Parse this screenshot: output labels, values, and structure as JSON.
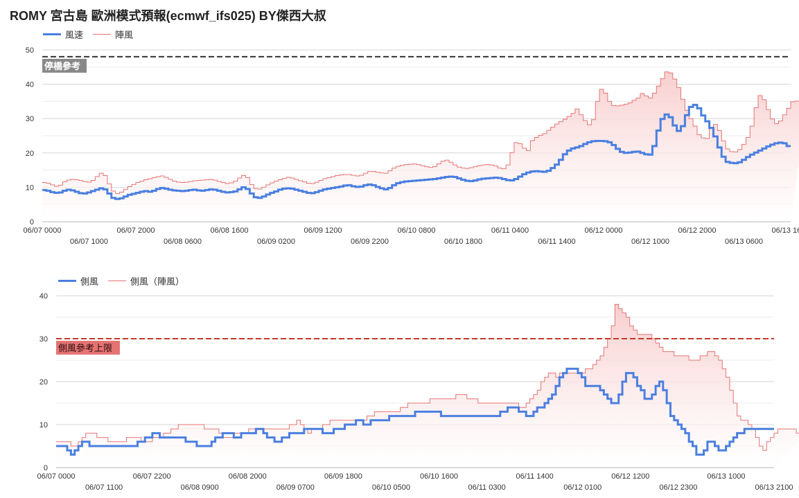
{
  "title": "ROMY 宮古島 歐洲模式預報(ecmwf_ifs025)  BY傑西大叔",
  "colors": {
    "wind": "#4a7fe0",
    "gust": "#e57373",
    "gust_fill": "#f8c9c9",
    "ref_line": "#333333",
    "limit_line": "#c0392b",
    "limit_label_bg": "#e57373",
    "ref_label_bg": "#888888"
  },
  "chart_data": [
    {
      "type": "line",
      "ylim": [
        0,
        50
      ],
      "yticks": [
        0,
        10,
        20,
        30,
        40,
        50
      ],
      "grid": true,
      "legend_placement": "top-left",
      "x_labels_upper": [
        "06/07 0000",
        "06/07 2000",
        "06/08 1600",
        "06/09 1200",
        "06/10 0800",
        "06/11 0400",
        "06/12 0000",
        "06/12 2000",
        "06/13 1600"
      ],
      "x_labels_lower": [
        "06/07 1000",
        "06/08 0600",
        "06/09 0200",
        "06/09 2200",
        "06/10 1800",
        "06/11 1400",
        "06/12 1000",
        "06/13 0600"
      ],
      "reference_line": {
        "value": 48,
        "label": "停橋參考"
      },
      "series": [
        {
          "name": "風速",
          "values": [
            9.2,
            9.0,
            8.6,
            8.4,
            8.5,
            9.0,
            9.3,
            9.1,
            8.7,
            8.3,
            8.2,
            8.5,
            8.9,
            9.3,
            9.7,
            9.4,
            8.2,
            6.9,
            6.6,
            6.8,
            7.3,
            7.8,
            8.1,
            8.4,
            8.7,
            8.9,
            8.7,
            9.0,
            9.5,
            9.8,
            9.6,
            9.3,
            9.1,
            9.0,
            8.9,
            9.0,
            9.2,
            9.3,
            9.1,
            9.0,
            9.2,
            9.4,
            9.3,
            9.0,
            8.7,
            8.5,
            8.6,
            8.8,
            9.4,
            10.0,
            9.5,
            8.2,
            7.1,
            6.9,
            7.3,
            7.9,
            8.4,
            8.8,
            9.3,
            9.6,
            9.7,
            9.6,
            9.3,
            9.0,
            8.7,
            8.4,
            8.3,
            8.6,
            9.0,
            9.4,
            9.6,
            9.8,
            10.0,
            10.2,
            10.5,
            10.6,
            10.3,
            10.1,
            10.2,
            10.6,
            10.8,
            10.6,
            10.1,
            9.7,
            9.4,
            9.8,
            10.6,
            11.2,
            11.5,
            11.7,
            11.8,
            11.9,
            12.0,
            12.1,
            12.2,
            12.3,
            12.4,
            12.6,
            12.8,
            13.0,
            13.1,
            13.0,
            12.6,
            12.2,
            11.9,
            11.8,
            12.0,
            12.3,
            12.5,
            12.6,
            12.7,
            12.8,
            12.7,
            12.4,
            12.1,
            12.0,
            12.4,
            13.1,
            13.8,
            14.3,
            14.6,
            14.7,
            14.6,
            14.5,
            14.8,
            15.6,
            16.6,
            18.0,
            19.6,
            20.7,
            21.3,
            21.6,
            22.0,
            22.6,
            23.1,
            23.4,
            23.5,
            23.5,
            23.4,
            23.1,
            22.3,
            21.2,
            20.3,
            20.0,
            20.1,
            20.3,
            20.4,
            20.0,
            19.6,
            19.5,
            22.0,
            26.5,
            29.9,
            31.2,
            30.4,
            28.0,
            26.4,
            27.8,
            31.0,
            33.4,
            34.0,
            33.0,
            30.9,
            29.2,
            27.3,
            24.8,
            21.6,
            18.9,
            17.4,
            17.1,
            17.0,
            17.3,
            18.0,
            18.8,
            19.5,
            20.1,
            20.7,
            21.3,
            21.9,
            22.4,
            22.8,
            23.0,
            22.8,
            22.0
          ]
        },
        {
          "name": "陣風",
          "values": [
            11.4,
            11.2,
            10.7,
            10.3,
            10.6,
            11.6,
            12.1,
            12.3,
            12.2,
            12.0,
            11.7,
            11.5,
            12.0,
            13.1,
            14.1,
            13.4,
            11.0,
            8.9,
            8.2,
            8.6,
            9.4,
            10.2,
            10.8,
            11.4,
            11.8,
            12.2,
            12.5,
            12.8,
            13.1,
            13.3,
            12.9,
            12.3,
            11.8,
            11.5,
            11.4,
            11.5,
            11.7,
            11.9,
            12.0,
            12.1,
            12.2,
            12.3,
            12.1,
            11.7,
            11.4,
            11.1,
            11.3,
            11.8,
            12.7,
            13.4,
            12.8,
            10.8,
            9.6,
            9.5,
            10.0,
            10.7,
            11.3,
            11.8,
            12.2,
            12.6,
            12.9,
            12.7,
            12.3,
            11.9,
            11.6,
            11.2,
            11.1,
            11.5,
            12.0,
            12.5,
            12.8,
            13.1,
            13.4,
            13.6,
            13.7,
            13.7,
            13.5,
            13.3,
            13.5,
            14.1,
            14.6,
            14.6,
            14.4,
            14.2,
            14.1,
            14.8,
            15.6,
            16.1,
            16.4,
            16.6,
            16.7,
            16.8,
            16.6,
            16.3,
            16.0,
            15.8,
            16.0,
            16.8,
            17.6,
            17.9,
            17.3,
            16.5,
            15.9,
            15.6,
            15.5,
            15.7,
            16.0,
            16.3,
            16.5,
            16.6,
            16.5,
            16.2,
            15.6,
            15.4,
            16.5,
            20.1,
            23.0,
            22.7,
            21.4,
            20.7,
            23.6,
            24.5,
            25.1,
            25.6,
            26.6,
            27.5,
            28.4,
            29.1,
            29.8,
            30.6,
            31.5,
            32.8,
            31.1,
            29.4,
            28.2,
            29.7,
            35.0,
            38.5,
            37.4,
            35.0,
            33.8,
            33.7,
            33.9,
            34.2,
            34.6,
            35.3,
            36.0,
            37.3,
            36.6,
            36.0,
            37.4,
            39.5,
            41.6,
            43.6,
            43.3,
            41.5,
            39.0,
            35.6,
            32.4,
            30.0,
            27.8,
            25.3,
            24.4,
            24.2,
            27.1,
            28.3,
            26.5,
            23.5,
            21.2,
            20.4,
            20.3,
            21.0,
            22.5,
            24.5,
            27.8,
            33.2,
            36.7,
            35.5,
            32.6,
            29.9,
            28.5,
            29.3,
            31.1,
            33.0,
            34.9,
            35.1,
            35.0,
            34.5
          ]
        }
      ]
    },
    {
      "type": "line",
      "ylim": [
        0,
        40
      ],
      "yticks": [
        0,
        10,
        20,
        30,
        40
      ],
      "grid": true,
      "legend_placement": "top-left",
      "x_labels_upper": [
        "06/07 0000",
        "06/07 2200",
        "06/08 2000",
        "06/09 1800",
        "06/10 1600",
        "06/11 1400",
        "06/12 1200",
        "06/13 1000"
      ],
      "x_labels_lower": [
        "06/07 1100",
        "06/08 0900",
        "06/09 0700",
        "06/10 0500",
        "06/11 0300",
        "06/12 0100",
        "06/12 2300",
        "06/13 2100"
      ],
      "reference_line": {
        "value": 30,
        "label": "側風參考上限"
      },
      "series": [
        {
          "name": "側風",
          "values": [
            5,
            5,
            5,
            4,
            3,
            4,
            5,
            6,
            6,
            5,
            5,
            5,
            5,
            5,
            5,
            5,
            5,
            5,
            5,
            5,
            5,
            5,
            6,
            6,
            7,
            7,
            8,
            8,
            7,
            7,
            7,
            7,
            7,
            7,
            7,
            6,
            6,
            6,
            5,
            5,
            5,
            5,
            6,
            7,
            7,
            8,
            8,
            8,
            7,
            7,
            8,
            8,
            8,
            8,
            9,
            9,
            8,
            7,
            7,
            6,
            6,
            7,
            7,
            8,
            8,
            8,
            8,
            9,
            9,
            9,
            9,
            9,
            8,
            8,
            8,
            9,
            9,
            9,
            10,
            10,
            10,
            11,
            11,
            10,
            10,
            11,
            11,
            11,
            11,
            11,
            12,
            12,
            12,
            12,
            12,
            12,
            12,
            13,
            13,
            13,
            13,
            13,
            13,
            13,
            12,
            12,
            12,
            12,
            12,
            12,
            12,
            12,
            12,
            12,
            12,
            12,
            12,
            12,
            12,
            12,
            13,
            13,
            14,
            14,
            14,
            13,
            13,
            12,
            12,
            13,
            14,
            14,
            15,
            16,
            17,
            19,
            21,
            22,
            23,
            23,
            23,
            22,
            21,
            19,
            19,
            19,
            19,
            18,
            17,
            16,
            15,
            15,
            17,
            20,
            22,
            22,
            21,
            19,
            18,
            16,
            16,
            17,
            19,
            20,
            18,
            15,
            12,
            11,
            10,
            9,
            8,
            6,
            5,
            3,
            3,
            4,
            6,
            6,
            5,
            4,
            4,
            5,
            6,
            7,
            8,
            8,
            9,
            9,
            9,
            9,
            9,
            9,
            9,
            9
          ]
        },
        {
          "name": "側風（陣風）",
          "values": [
            6,
            6,
            6,
            6,
            5,
            5,
            6,
            7,
            8,
            8,
            8,
            7,
            7,
            7,
            6,
            6,
            6,
            6,
            6,
            7,
            7,
            7,
            7,
            6,
            6,
            6,
            7,
            7,
            7,
            8,
            8,
            9,
            9,
            10,
            10,
            10,
            10,
            10,
            10,
            10,
            9,
            9,
            9,
            9,
            8,
            7,
            7,
            7,
            8,
            8,
            8,
            8,
            9,
            9,
            9,
            9,
            9,
            9,
            9,
            9,
            9,
            9,
            9,
            10,
            10,
            11,
            10,
            9,
            8,
            9,
            9,
            9,
            10,
            10,
            11,
            11,
            11,
            11,
            11,
            11,
            11,
            11,
            11,
            11,
            12,
            12,
            13,
            13,
            13,
            13,
            13,
            13,
            13,
            14,
            14,
            15,
            15,
            15,
            15,
            15,
            15,
            16,
            16,
            16,
            16,
            16,
            16,
            16,
            17,
            17,
            17,
            16,
            16,
            16,
            15,
            15,
            15,
            15,
            15,
            15,
            15,
            15,
            15,
            15,
            15,
            14,
            14,
            15,
            16,
            17,
            18,
            20,
            21,
            22,
            22,
            21,
            22,
            22,
            22,
            22,
            22,
            22,
            22,
            23,
            23,
            24,
            25,
            26,
            28,
            30,
            33,
            38,
            37,
            36,
            35,
            33,
            32,
            31,
            31,
            31,
            31,
            30,
            29,
            28,
            27,
            27,
            27,
            26,
            26,
            26,
            26,
            25,
            25,
            25,
            26,
            26,
            27,
            27,
            26,
            25,
            23,
            21,
            18,
            15,
            12,
            11,
            11,
            10,
            9,
            7,
            5,
            4,
            6,
            7,
            8,
            9,
            9,
            9,
            9,
            9,
            8,
            9,
            10,
            11,
            12,
            12,
            13,
            13,
            14,
            14
          ]
        }
      ]
    }
  ]
}
